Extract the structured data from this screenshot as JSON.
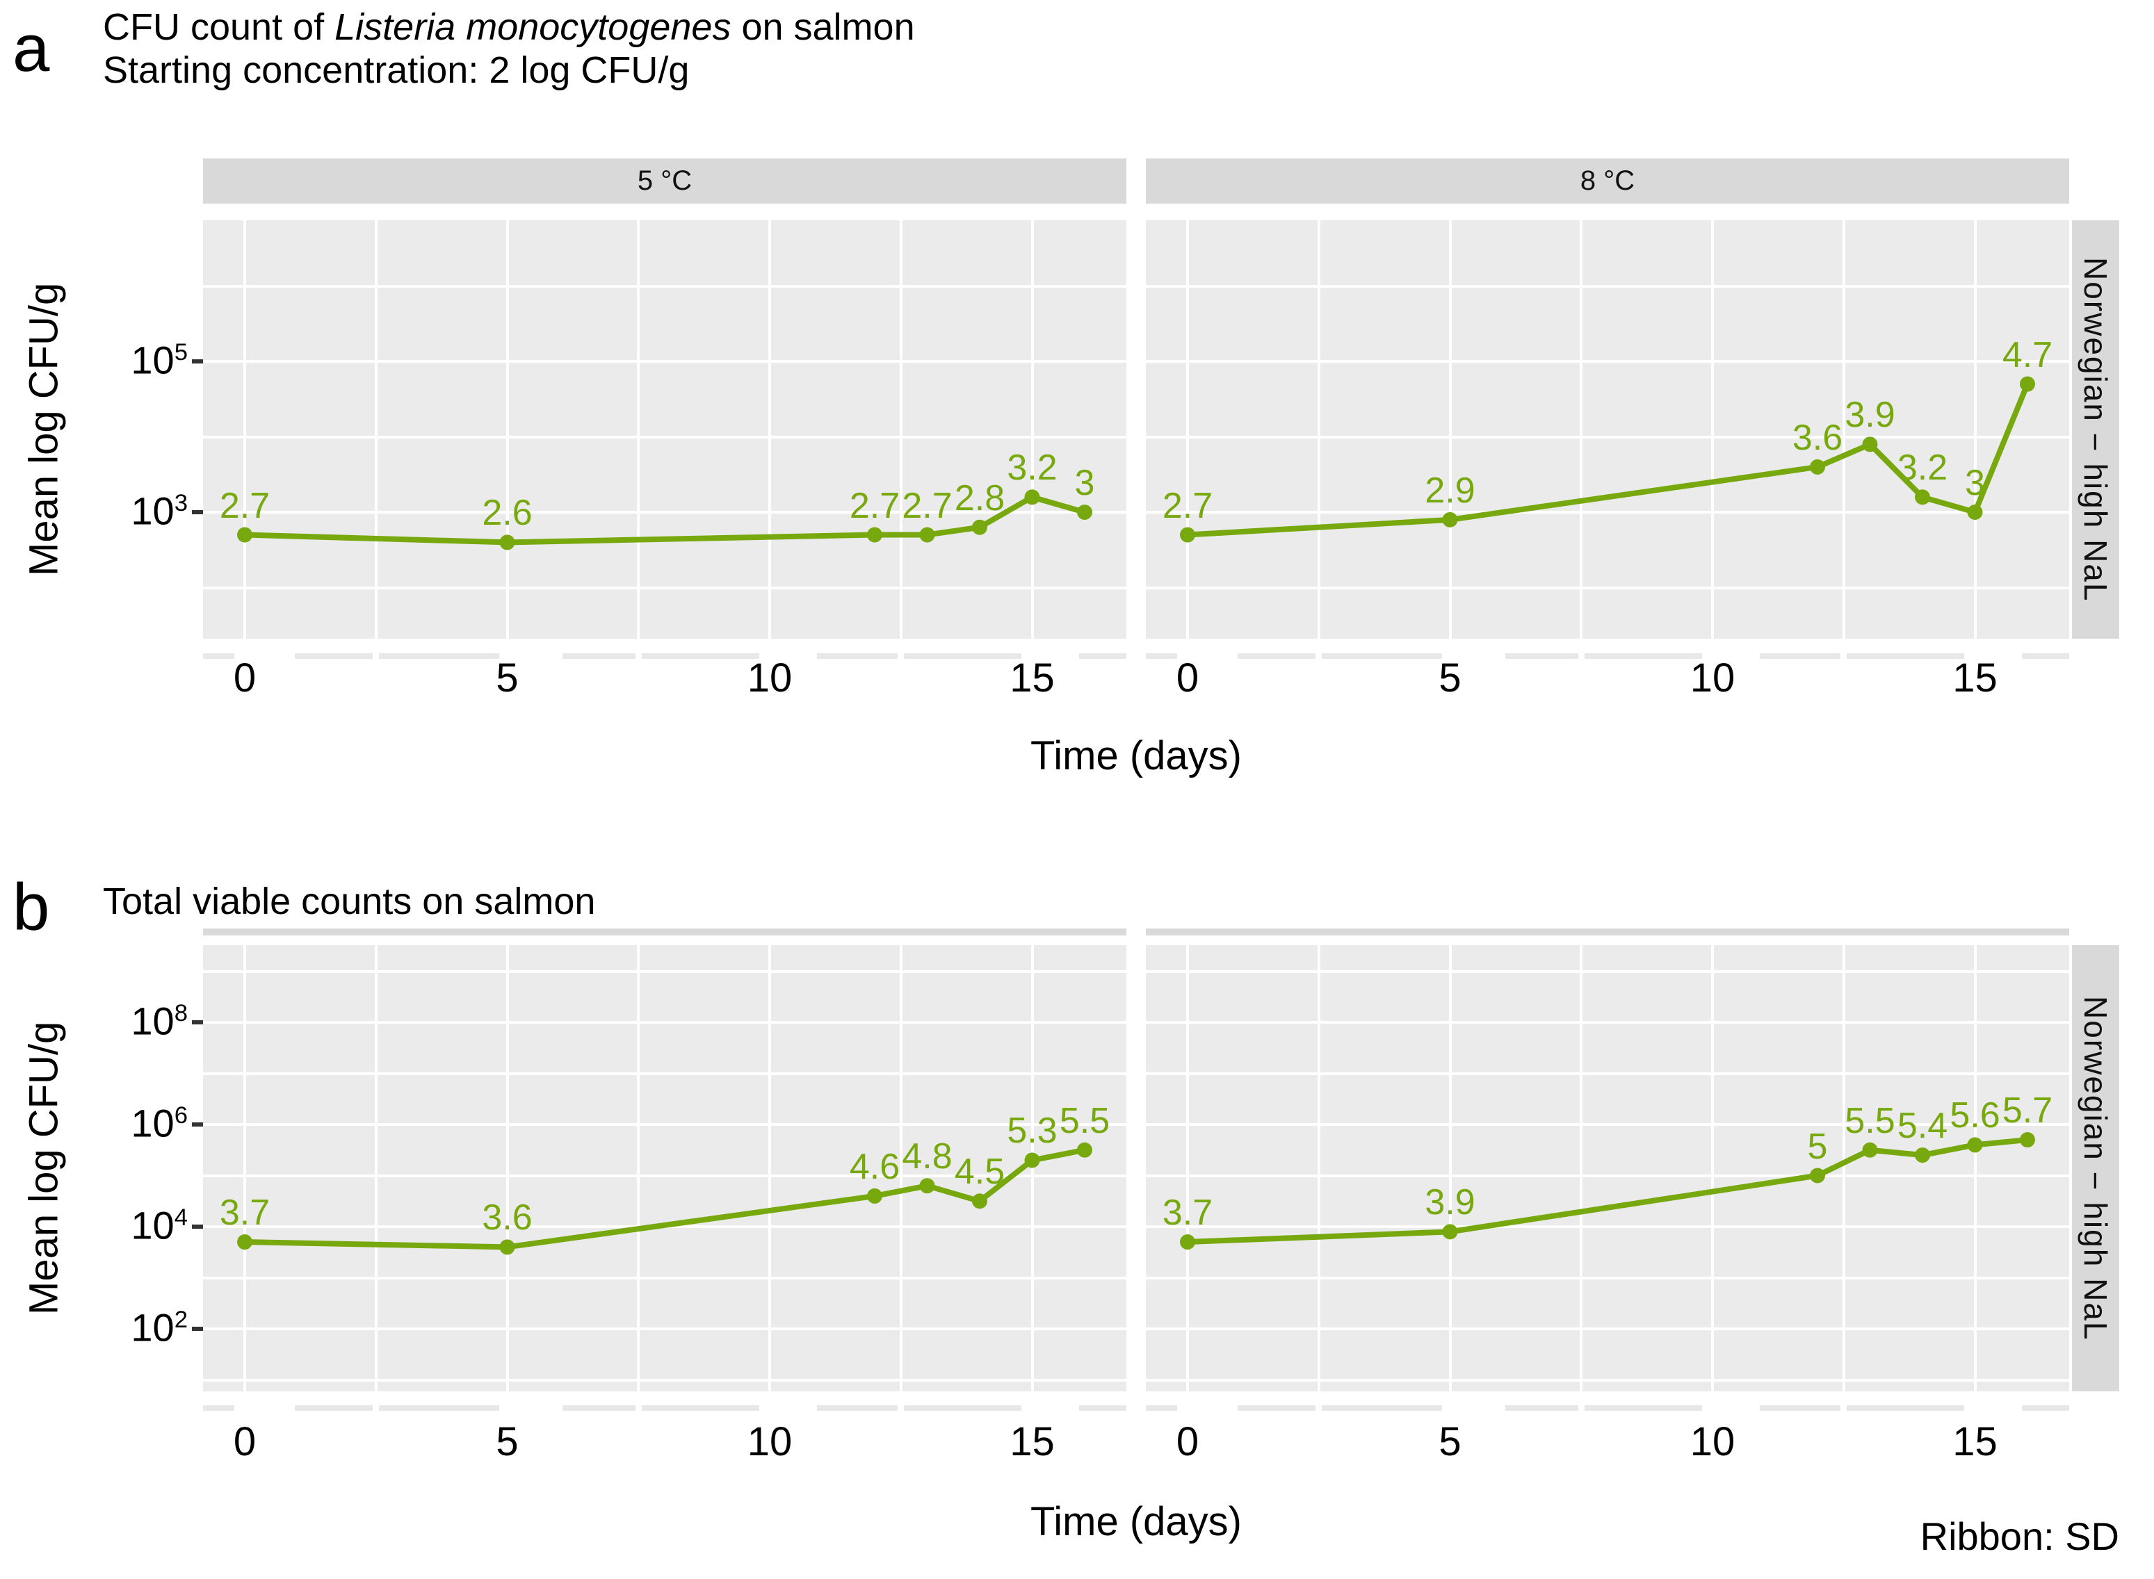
{
  "figure_caption": "Ribbon: SD",
  "panel_a": {
    "letter": "a",
    "title_prefix": "CFU count of ",
    "title_italic": "Listeria monocytogenes",
    "title_suffix": " on salmon",
    "subtitle": "Starting concentration: 2 log CFU/g",
    "ylabel": "Mean log CFU/g",
    "xlabel": "Time (days)",
    "right_strip": "Norwegian − high NaL",
    "facet_labels": [
      "5 °C",
      "8 °C"
    ]
  },
  "panel_b": {
    "letter": "b",
    "title": "Total viable counts on salmon",
    "ylabel": "Mean log CFU/g",
    "xlabel": "Time (days)",
    "right_strip": "Norwegian − high NaL",
    "facet_labels": [
      "",
      ""
    ]
  },
  "colors": {
    "series_green": "#77A80D",
    "panel_bg": "#EBEBEB",
    "strip_bg": "#D9D9D9",
    "grid": "#FFFFFF",
    "tick_band": "#E8E8E8",
    "axis_text": "#000000",
    "tick_mark": "#333333"
  },
  "chart_data": [
    {
      "type": "line",
      "panel": "a",
      "facet": "5 °C",
      "title": "CFU count of Listeria monocytogenes on salmon — Starting concentration: 2 log CFU/g",
      "xlabel": "Time (days)",
      "ylabel": "Mean log CFU/g",
      "x_days": [
        0,
        5,
        12,
        13,
        14,
        15,
        16
      ],
      "log_cfu": [
        2.7,
        2.6,
        2.7,
        2.7,
        2.8,
        3.2,
        3
      ],
      "point_labels": [
        "2.7",
        "2.6",
        "2.7",
        "2.7",
        "2.8",
        "3.2",
        "3"
      ],
      "x_ticks": [
        0,
        5,
        10,
        15
      ],
      "x_minor_ticks": [
        2.5,
        7.5,
        12.5
      ],
      "y_tick_exponents": [
        3,
        5
      ],
      "y_grid_exponents": [
        2,
        3,
        4,
        5,
        6
      ],
      "x_range": [
        -0.8,
        16.8
      ],
      "y_range_exponents": [
        1.3,
        6.9
      ],
      "grid": "on",
      "legend": "none",
      "ribbon": "SD (not visible, flat)"
    },
    {
      "type": "line",
      "panel": "a",
      "facet": "8 °C",
      "title": "CFU count of Listeria monocytogenes on salmon — Starting concentration: 2 log CFU/g",
      "xlabel": "Time (days)",
      "ylabel": "Mean log CFU/g",
      "x_days": [
        0,
        5,
        12,
        13,
        14,
        15,
        16
      ],
      "log_cfu": [
        2.7,
        2.9,
        3.6,
        3.9,
        3.2,
        3,
        4.7
      ],
      "point_labels": [
        "2.7",
        "2.9",
        "3.6",
        "3.9",
        "3.2",
        "3",
        "4.7"
      ],
      "x_ticks": [
        0,
        5,
        10,
        15
      ],
      "x_minor_ticks": [
        2.5,
        7.5,
        12.5
      ],
      "y_tick_exponents": [
        3,
        5
      ],
      "y_grid_exponents": [
        2,
        3,
        4,
        5,
        6
      ],
      "x_range": [
        -0.8,
        16.8
      ],
      "y_range_exponents": [
        1.3,
        6.9
      ],
      "grid": "on",
      "legend": "none",
      "ribbon": "SD (not visible, flat)"
    },
    {
      "type": "line",
      "panel": "b",
      "facet": "5 °C",
      "title": "Total viable counts on salmon",
      "xlabel": "Time (days)",
      "ylabel": "Mean log CFU/g",
      "x_days": [
        0,
        5,
        12,
        13,
        14,
        15,
        16
      ],
      "log_cfu": [
        3.7,
        3.6,
        4.6,
        4.8,
        4.5,
        5.3,
        5.5
      ],
      "point_labels": [
        "3.7",
        "3.6",
        "4.6",
        "4.8",
        "4.5",
        "5.3",
        "5.5"
      ],
      "x_ticks": [
        0,
        5,
        10,
        15
      ],
      "x_minor_ticks": [
        2.5,
        7.5,
        12.5
      ],
      "y_tick_exponents": [
        2,
        4,
        6,
        8
      ],
      "y_grid_exponents": [
        1,
        2,
        3,
        4,
        5,
        6,
        7,
        8,
        9
      ],
      "x_range": [
        -0.8,
        16.8
      ],
      "y_range_exponents": [
        0.8,
        9.5
      ],
      "grid": "on",
      "legend": "none",
      "ribbon": "SD (not visible, flat)"
    },
    {
      "type": "line",
      "panel": "b",
      "facet": "8 °C",
      "title": "Total viable counts on salmon",
      "xlabel": "Time (days)",
      "ylabel": "Mean log CFU/g",
      "x_days": [
        0,
        5,
        12,
        13,
        14,
        15,
        16
      ],
      "log_cfu": [
        3.7,
        3.9,
        5,
        5.5,
        5.4,
        5.6,
        5.7
      ],
      "point_labels": [
        "3.7",
        "3.9",
        "5",
        "5.5",
        "5.4",
        "5.6",
        "5.7"
      ],
      "x_ticks": [
        0,
        5,
        10,
        15
      ],
      "x_minor_ticks": [
        2.5,
        7.5,
        12.5
      ],
      "y_tick_exponents": [
        2,
        4,
        6,
        8
      ],
      "y_grid_exponents": [
        1,
        2,
        3,
        4,
        5,
        6,
        7,
        8,
        9
      ],
      "x_range": [
        -0.8,
        16.8
      ],
      "y_range_exponents": [
        0.8,
        9.5
      ],
      "grid": "on",
      "legend": "none",
      "ribbon": "SD (not visible, flat)"
    }
  ]
}
